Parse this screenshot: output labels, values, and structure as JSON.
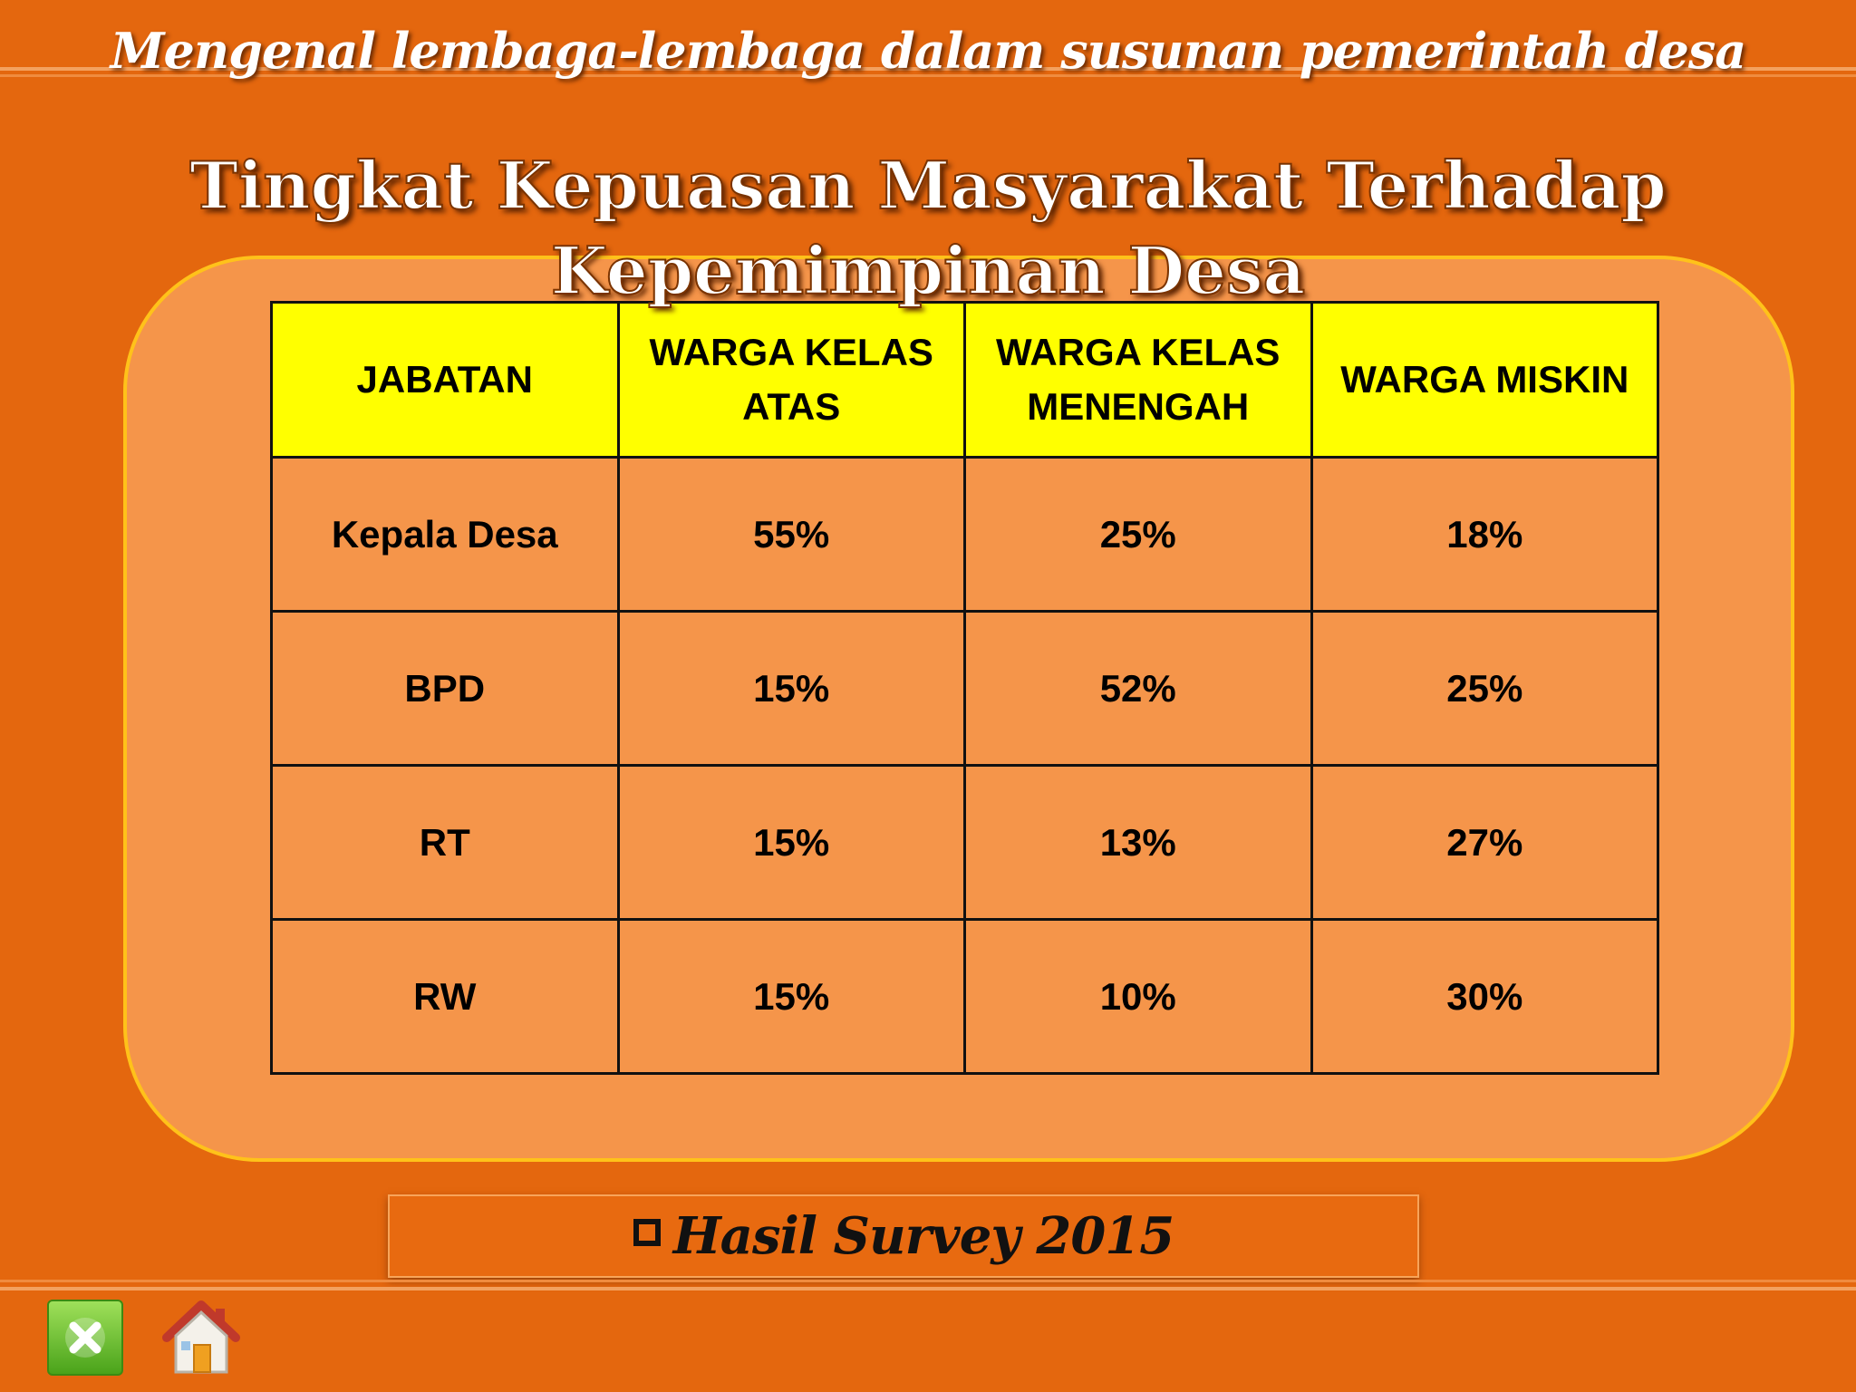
{
  "header": {
    "title": "Mengenal lembaga-lembaga dalam susunan pemerintah desa"
  },
  "slide": {
    "title": "Tingkat Kepuasan Masyarakat Terhadap Kepemimpinan Desa"
  },
  "table": {
    "columns": [
      "JABATAN",
      "WARGA KELAS ATAS",
      "WARGA KELAS MENENGAH",
      "WARGA MISKIN"
    ],
    "rows": [
      [
        "Kepala Desa",
        "55%",
        "25%",
        "18%"
      ],
      [
        "BPD",
        "15%",
        "52%",
        "25%"
      ],
      [
        "RT",
        "15%",
        "13%",
        "27%"
      ],
      [
        "RW",
        "15%",
        "10%",
        "30%"
      ]
    ]
  },
  "footer": {
    "label": "Hasil Survey 2015"
  },
  "nav": {
    "close_icon": "close-icon",
    "home_icon": "home-icon"
  },
  "colors": {
    "background": "#e4670e",
    "panel": "#f5954a",
    "panel_border": "#ffc21a",
    "header_row": "#ffff00"
  }
}
